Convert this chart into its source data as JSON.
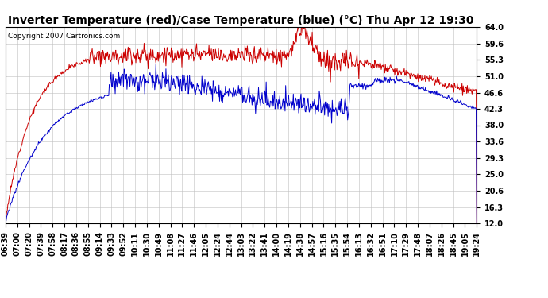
{
  "title": "Inverter Temperature (red)/Case Temperature (blue) (°C) Thu Apr 12 19:30",
  "copyright": "Copyright 2007 Cartronics.com",
  "yticks": [
    12.0,
    16.3,
    20.6,
    25.0,
    29.3,
    33.6,
    38.0,
    42.3,
    46.6,
    51.0,
    55.3,
    59.6,
    64.0
  ],
  "ylim": [
    12.0,
    64.0
  ],
  "bg_color": "#ffffff",
  "plot_bg_color": "#ffffff",
  "grid_color": "#c0c0c0",
  "red_color": "#cc0000",
  "blue_color": "#0000cc",
  "title_fontsize": 10,
  "copyright_fontsize": 6.5,
  "tick_fontsize": 7,
  "n_points": 800,
  "xtick_labels": [
    "06:39",
    "07:00",
    "07:20",
    "07:39",
    "07:58",
    "08:17",
    "08:36",
    "08:55",
    "09:14",
    "09:33",
    "09:52",
    "10:11",
    "10:30",
    "10:49",
    "11:08",
    "11:27",
    "11:46",
    "12:05",
    "12:24",
    "12:44",
    "13:03",
    "13:22",
    "13:41",
    "14:00",
    "14:19",
    "14:38",
    "14:57",
    "15:16",
    "15:35",
    "15:54",
    "16:13",
    "16:32",
    "16:51",
    "17:10",
    "17:29",
    "17:48",
    "18:07",
    "18:26",
    "18:45",
    "19:05",
    "19:24"
  ]
}
